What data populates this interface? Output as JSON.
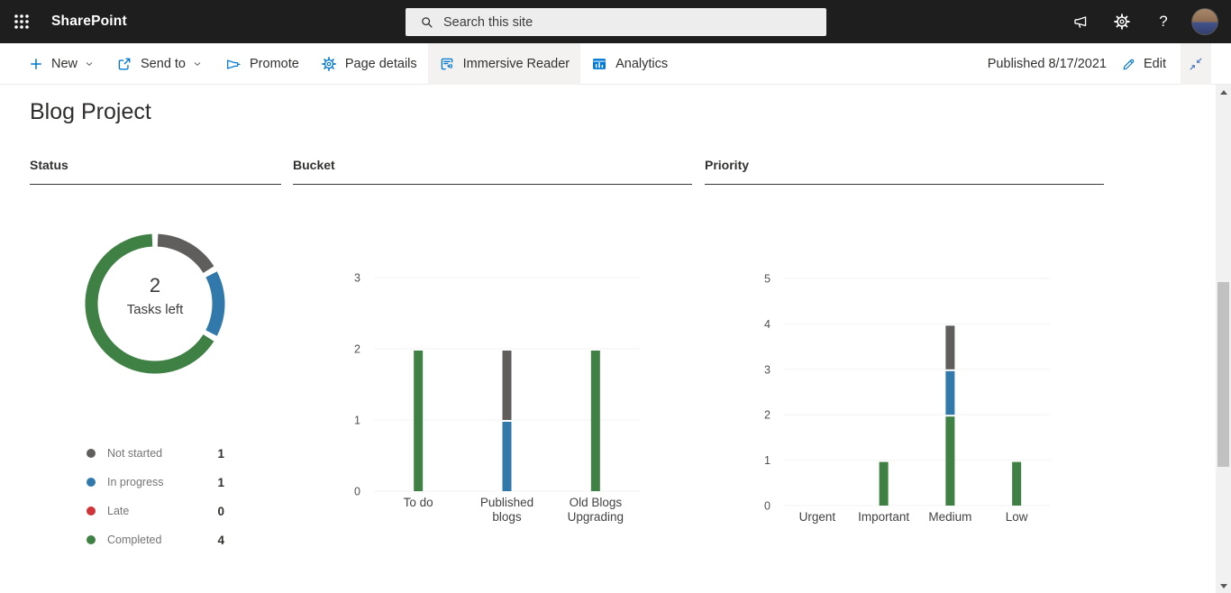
{
  "suite_bar": {
    "app_name": "SharePoint",
    "search_placeholder": "Search this site"
  },
  "command_bar": {
    "items": [
      {
        "label": "New"
      },
      {
        "label": "Send to"
      },
      {
        "label": "Promote"
      },
      {
        "label": "Page details"
      },
      {
        "label": "Immersive Reader"
      },
      {
        "label": "Analytics"
      }
    ],
    "published_text": "Published 8/17/2021",
    "edit_label": "Edit"
  },
  "page": {
    "title": "Blog Project"
  },
  "sections": {
    "status": "Status",
    "bucket": "Bucket",
    "priority": "Priority"
  },
  "colors": {
    "accent": "#0078d4",
    "completed": "#3F8044",
    "in_progress": "#3179AB",
    "not_started": "#5F5E5C",
    "late": "#D13438",
    "grid": "#f3f3f3",
    "tick_text": "#4f4f4f",
    "category_text": "#424242"
  },
  "chart_data": [
    {
      "type": "donut",
      "title": "Status",
      "center_value": "2",
      "center_label": "Tasks left",
      "segments": [
        {
          "label": "Not started",
          "value": 1,
          "color_key": "not_started"
        },
        {
          "label": "In progress",
          "value": 1,
          "color_key": "in_progress"
        },
        {
          "label": "Late",
          "value": 0,
          "color_key": "late"
        },
        {
          "label": "Completed",
          "value": 4,
          "color_key": "completed"
        }
      ]
    },
    {
      "type": "bar",
      "stacked": true,
      "title": "Bucket",
      "categories": [
        "To do",
        "Published blogs",
        "Old Blogs Upgrading"
      ],
      "y_ticks": [
        0,
        1,
        2,
        3
      ],
      "ylim": [
        0,
        3
      ],
      "grid": true,
      "series": [
        {
          "name": "Completed",
          "color_key": "completed",
          "values": [
            2,
            0,
            2
          ]
        },
        {
          "name": "In progress",
          "color_key": "in_progress",
          "values": [
            0,
            1,
            0
          ]
        },
        {
          "name": "Not started",
          "color_key": "not_started",
          "values": [
            0,
            1,
            0
          ]
        }
      ]
    },
    {
      "type": "bar",
      "stacked": true,
      "title": "Priority",
      "categories": [
        "Urgent",
        "Important",
        "Medium",
        "Low"
      ],
      "y_ticks": [
        0,
        1,
        2,
        3,
        4,
        5
      ],
      "ylim": [
        0,
        5
      ],
      "grid": true,
      "series": [
        {
          "name": "Completed",
          "color_key": "completed",
          "values": [
            0,
            1,
            2,
            1
          ]
        },
        {
          "name": "In progress",
          "color_key": "in_progress",
          "values": [
            0,
            0,
            1,
            0
          ]
        },
        {
          "name": "Not started",
          "color_key": "not_started",
          "values": [
            0,
            0,
            1,
            0
          ]
        }
      ]
    }
  ]
}
